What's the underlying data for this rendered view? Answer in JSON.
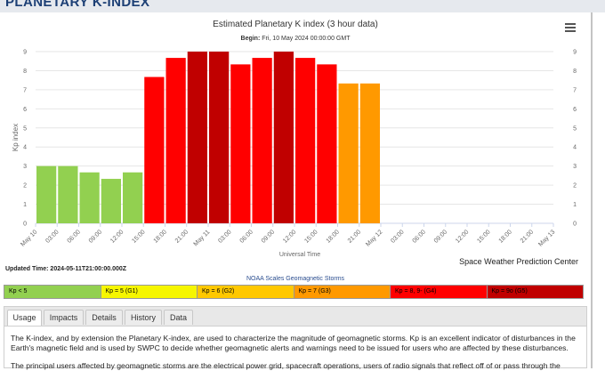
{
  "page": {
    "heading": "PLANETARY K-INDEX"
  },
  "chart_data": {
    "type": "bar",
    "title": "Estimated Planetary K index (3 hour data)",
    "subtitle_label": "Begin:",
    "subtitle_value": "Fri, 10 May 2024 00:00:00 GMT",
    "ylabel": "Kp index",
    "xlabel": "Universal Time",
    "ylim": [
      0,
      9
    ],
    "yticks": [
      0,
      1,
      2,
      3,
      4,
      5,
      6,
      7,
      8,
      9
    ],
    "xticks": [
      "May 10",
      "03:00",
      "06:00",
      "09:00",
      "12:00",
      "15:00",
      "18:00",
      "21:00",
      "May 11",
      "03:00",
      "06:00",
      "09:00",
      "12:00",
      "15:00",
      "18:00",
      "21:00",
      "May 12",
      "03:00",
      "06:00",
      "09:00",
      "12:00",
      "15:00",
      "18:00",
      "21:00",
      "May 13"
    ],
    "values": [
      3.0,
      3.0,
      2.67,
      2.33,
      2.67,
      7.67,
      8.67,
      9.0,
      9.0,
      8.33,
      8.67,
      9.0,
      8.67,
      8.33,
      7.33,
      7.33
    ],
    "bar_colors": [
      "#92d050",
      "#92d050",
      "#92d050",
      "#92d050",
      "#92d050",
      "#ff0000",
      "#ff0000",
      "#c00000",
      "#c00000",
      "#ff0000",
      "#ff0000",
      "#c00000",
      "#ff0000",
      "#ff0000",
      "#ff9900",
      "#ff9900"
    ],
    "grid": "horizontal"
  },
  "menu_icon": "hamburger-menu-icon",
  "updated_time": "Updated Time: 2024-05-11T21:00:00.000Z",
  "credit": "Space Weather Prediction Center",
  "scales": {
    "title": "NOAA Scales Geomagnetic Storms",
    "items": [
      {
        "label": "Kp < 5",
        "color": "#92d050"
      },
      {
        "label": "Kp = 5 (G1)",
        "color": "#f6f600"
      },
      {
        "label": "Kp = 6 (G2)",
        "color": "#ffc800"
      },
      {
        "label": "Kp = 7 (G3)",
        "color": "#ff9900"
      },
      {
        "label": "Kp = 8, 9- (G4)",
        "color": "#ff0000"
      },
      {
        "label": "Kp = 9o (G5)",
        "color": "#c00000"
      }
    ]
  },
  "tabs": [
    "Usage",
    "Impacts",
    "Details",
    "History",
    "Data"
  ],
  "usage": {
    "p1": "The K-index, and by extension the Planetary K-index, are used to characterize the magnitude of geomagnetic storms. Kp is an excellent indicator of disturbances in the Earth's magnetic field and is used by SWPC to decide whether geomagnetic alerts and warnings need to be issued for users who are affected by these disturbances.",
    "p2": "The principal users affected by geomagnetic storms are the electrical power grid, spacecraft operations, users of radio signals that reflect off of or pass through the"
  }
}
